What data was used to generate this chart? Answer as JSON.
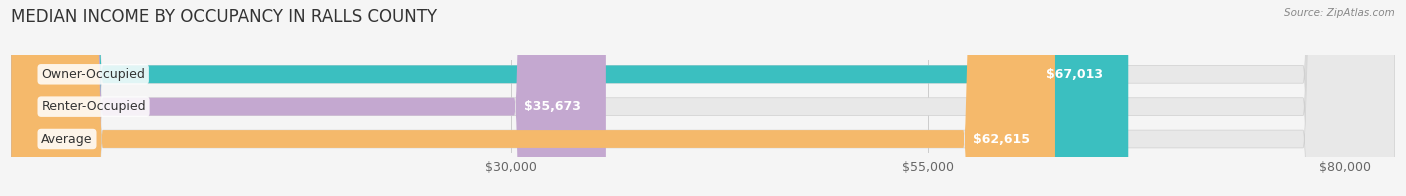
{
  "title": "MEDIAN INCOME BY OCCUPANCY IN RALLS COUNTY",
  "source": "Source: ZipAtlas.com",
  "categories": [
    "Owner-Occupied",
    "Renter-Occupied",
    "Average"
  ],
  "values": [
    67013,
    35673,
    62615
  ],
  "bar_colors": [
    "#3bbfc0",
    "#c4a8d0",
    "#f5b96b"
  ],
  "bar_labels": [
    "$67,013",
    "$35,673",
    "$62,615"
  ],
  "xmin": 0,
  "xmax": 83000,
  "xticks": [
    30000,
    55000,
    80000
  ],
  "xtick_labels": [
    "$30,000",
    "$55,000",
    "$80,000"
  ],
  "bg_color": "#f5f5f5",
  "bar_bg_color": "#e8e8e8",
  "title_fontsize": 12,
  "label_fontsize": 9,
  "value_fontsize": 9,
  "tick_fontsize": 9,
  "bar_height": 0.55
}
